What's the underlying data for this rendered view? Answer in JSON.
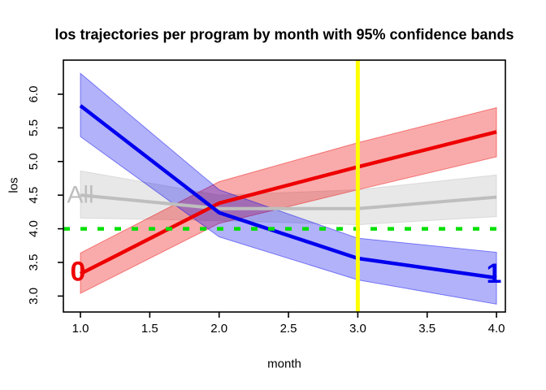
{
  "title": "los trajectories per program by month with 95% confidence bands",
  "chart_data": {
    "type": "line",
    "title": "los trajectories per program by month with 95% confidence bands",
    "xlabel": "month",
    "ylabel": "los",
    "x": [
      1,
      2,
      3,
      4
    ],
    "xlim": [
      0.877,
      4.064
    ],
    "ylim": [
      2.763,
      6.507
    ],
    "xticks": [
      "1.0",
      "1.5",
      "2.0",
      "2.5",
      "3.0",
      "3.5",
      "4.0"
    ],
    "yticks": [
      "3.0",
      "3.5",
      "4.0",
      "4.5",
      "5.0",
      "5.5",
      "6.0"
    ],
    "grid": false,
    "legend": "in-plot text labels at line endpoints",
    "series": [
      {
        "name": "all-programs",
        "label": "All",
        "color": "#BEBEBE",
        "band_opacity": 0.35,
        "line_width": 4,
        "values": [
          4.5,
          4.3,
          4.3,
          4.47
        ],
        "upper": [
          4.86,
          4.5,
          4.58,
          4.8
        ],
        "lower": [
          4.16,
          4.12,
          4.06,
          4.18
        ],
        "label_x": 1.0,
        "label_y": 4.5,
        "label_size": 30,
        "label_weight": "normal"
      },
      {
        "name": "program-0",
        "label": "0",
        "color": "#EE0000",
        "band_opacity": 0.33,
        "line_width": 4.5,
        "values": [
          3.33,
          4.38,
          4.92,
          5.44
        ],
        "upper": [
          3.64,
          4.7,
          5.28,
          5.8
        ],
        "lower": [
          3.04,
          4.08,
          4.58,
          5.07
        ],
        "label_x": 0.982,
        "label_y": 3.36,
        "label_size": 34,
        "label_weight": "bold"
      },
      {
        "name": "program-1",
        "label": "1",
        "color": "#0000EE",
        "band_opacity": 0.3,
        "line_width": 4.5,
        "values": [
          5.83,
          4.24,
          3.56,
          3.27
        ],
        "upper": [
          6.31,
          4.58,
          3.86,
          3.65
        ],
        "lower": [
          5.37,
          3.88,
          3.24,
          2.88
        ],
        "label_x": 3.982,
        "label_y": 3.33,
        "label_size": 34,
        "label_weight": "bold"
      }
    ],
    "reference_lines": [
      {
        "name": "hline-los-4",
        "orientation": "horizontal",
        "value": 4.0,
        "color": "#00E000",
        "style": "dashed",
        "line_width": 4.5
      },
      {
        "name": "vline-month-3",
        "orientation": "vertical",
        "value": 3.0,
        "color": "#FFFF00",
        "style": "solid",
        "line_width": 5
      }
    ]
  }
}
